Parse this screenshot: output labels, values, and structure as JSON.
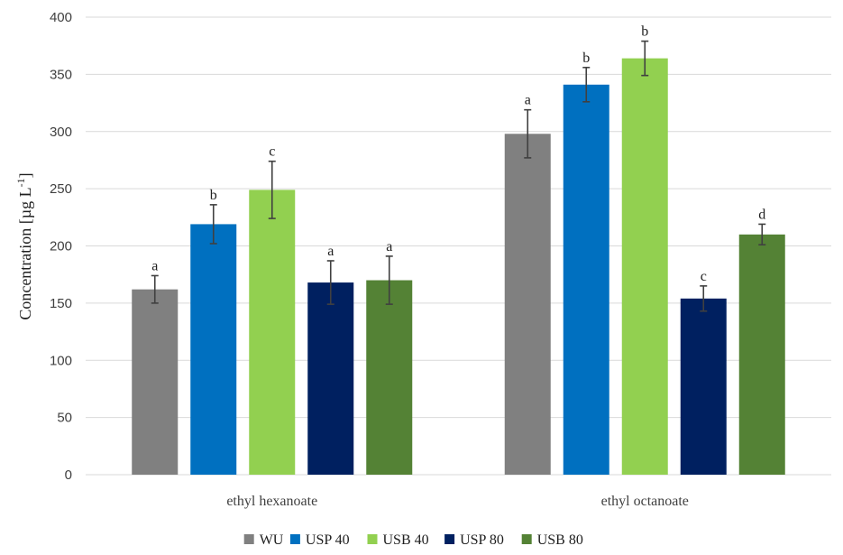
{
  "chart_data": {
    "type": "bar",
    "ylabel": "Concentration [µg L",
    "ylabel_sup": "-1",
    "ylabel_tail": "]",
    "ylim": [
      0,
      400
    ],
    "yticks": [
      0,
      50,
      100,
      150,
      200,
      250,
      300,
      350,
      400
    ],
    "grid": true,
    "legend_position": "bottom",
    "categories": [
      "ethyl hexanoate",
      "ethyl octanoate"
    ],
    "series": [
      {
        "name": "WU",
        "color": "#808080",
        "values": [
          162,
          298
        ],
        "errors": [
          12,
          21
        ],
        "labels": [
          "a",
          "a"
        ]
      },
      {
        "name": "USP 40",
        "color": "#0070C0",
        "values": [
          219,
          341
        ],
        "errors": [
          17,
          15
        ],
        "labels": [
          "b",
          "b"
        ]
      },
      {
        "name": "USB 40",
        "color": "#92D050",
        "values": [
          249,
          364
        ],
        "errors": [
          25,
          15
        ],
        "labels": [
          "c",
          "b"
        ]
      },
      {
        "name": "USP 80",
        "color": "#002060",
        "values": [
          168,
          154
        ],
        "errors": [
          19,
          11
        ],
        "labels": [
          "a",
          "c"
        ]
      },
      {
        "name": "USB 80",
        "color": "#548235",
        "values": [
          170,
          210
        ],
        "errors": [
          21,
          9
        ],
        "labels": [
          "a",
          "d"
        ]
      }
    ]
  }
}
